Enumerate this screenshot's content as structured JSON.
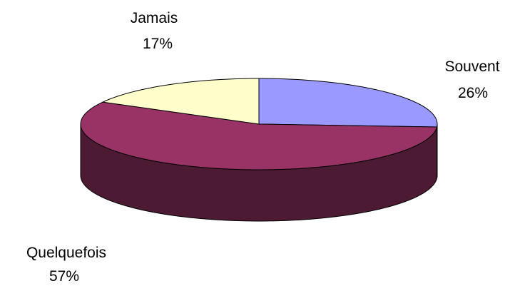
{
  "chart_data": {
    "type": "pie",
    "style": "3d-exploded-none",
    "slices": [
      {
        "label": "Souvent",
        "value": 26,
        "value_label": "26%",
        "color": "#9999ff",
        "side_color": "#4d4d80"
      },
      {
        "label": "Quelquefois",
        "value": 57,
        "value_label": "57%",
        "color": "#993366",
        "side_color": "#4d1a33"
      },
      {
        "label": "Jamais",
        "value": 17,
        "value_label": "17%",
        "color": "#ffffcc",
        "side_color": "#808066"
      }
    ],
    "start_angle": "12 o'clock",
    "direction": "clockwise",
    "legend": "none",
    "outline_color": "#000000"
  }
}
